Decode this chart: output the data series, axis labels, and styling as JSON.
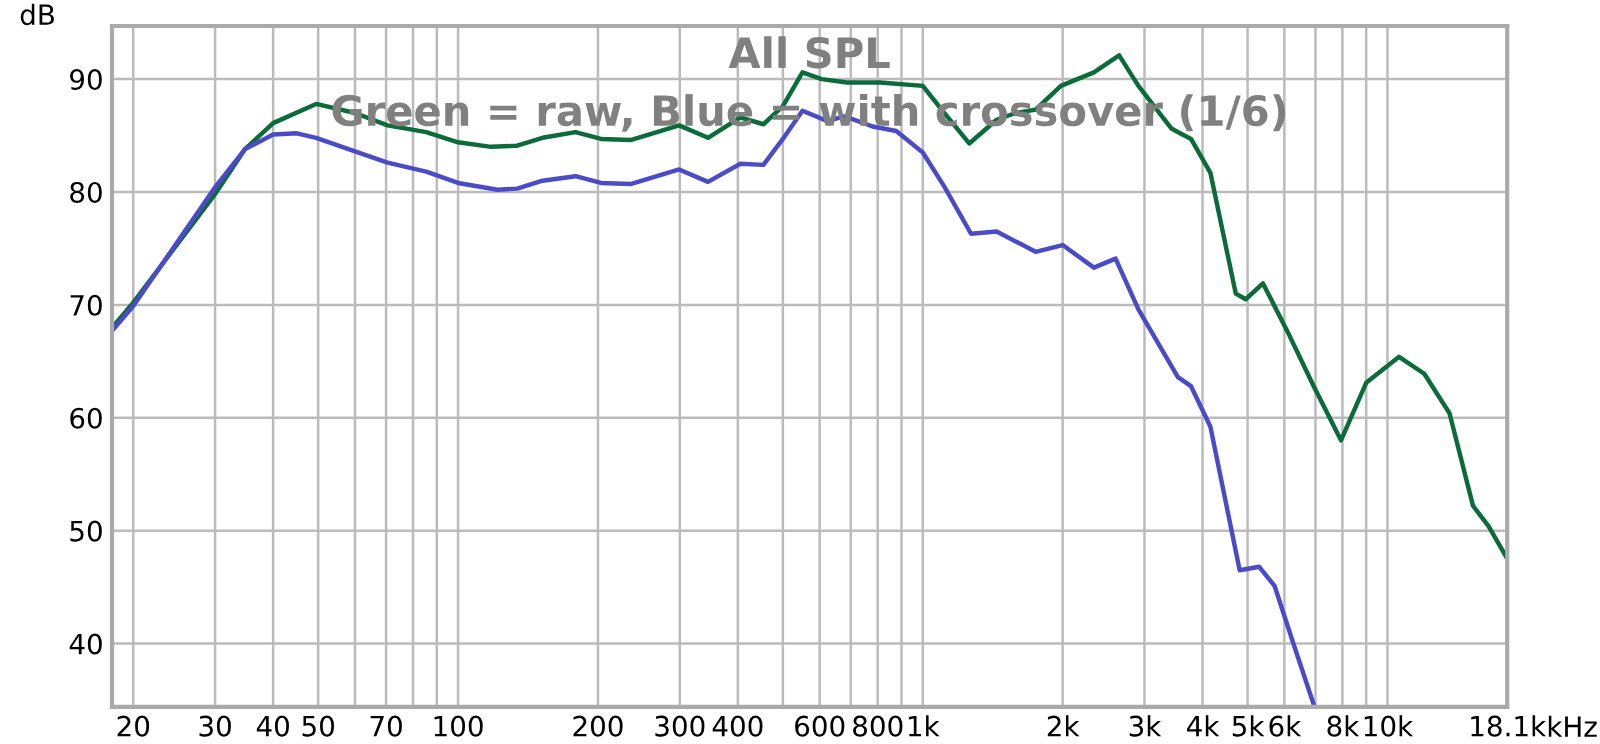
{
  "chart_data": {
    "type": "line",
    "title": "All SPL",
    "subtitle": "Green = raw, Blue = with crossover (1/6)",
    "ylabel": "dB",
    "log": "x",
    "grid": true,
    "marker": "none",
    "line_style": "solid",
    "xlim": [
      18,
      18100
    ],
    "ylim": [
      34.4,
      94.7
    ],
    "xticks": [
      20,
      30,
      40,
      50,
      {
        "value": 60,
        "label": null
      },
      70,
      {
        "value": 80,
        "label": null
      },
      {
        "value": 90,
        "label": null
      },
      100,
      200,
      300,
      400,
      {
        "value": 500,
        "label": null
      },
      600,
      {
        "value": 700,
        "label": null
      },
      800,
      {
        "value": 900,
        "label": null
      },
      {
        "value": 1000,
        "label": "1k"
      },
      {
        "value": 2000,
        "label": "2k"
      },
      {
        "value": 3000,
        "label": "3k"
      },
      {
        "value": 4000,
        "label": "4k"
      },
      {
        "value": 5000,
        "label": "5k"
      },
      {
        "value": 6000,
        "label": "6k"
      },
      {
        "value": 7000,
        "label": null
      },
      {
        "value": 8000,
        "label": "8k"
      },
      {
        "value": 9000,
        "label": null
      },
      {
        "value": 10000,
        "label": "10k"
      },
      {
        "value": 18100,
        "label": "18.1k"
      }
    ],
    "xlabel": "kHz",
    "yticks": [
      40,
      50,
      60,
      70,
      80,
      90
    ],
    "series": [
      {
        "color": "#0b6b3a",
        "x": [
          18.1,
          20,
          30.1,
          34.8,
          40,
          49.5,
          60,
          70.5,
          85.4,
          100,
          117.8,
          134,
          152,
          179,
          203,
          235,
          299,
          345,
          405,
          454,
          500,
          551,
          606,
          687,
          809,
          1000,
          1112,
          1259,
          1442,
          1585,
          1749,
          1983,
          2335,
          2646,
          2911,
          3433,
          3778,
          4159,
          4716,
          4955,
          5397,
          6115,
          6939,
          7943,
          8999,
          10593,
          12000,
          13600,
          15280,
          16500,
          18000
        ],
        "values": [
          68.1,
          70.2,
          79.9,
          83.8,
          86.1,
          87.8,
          87,
          85.9,
          85.3,
          84.4,
          84,
          84.1,
          84.8,
          85.3,
          84.7,
          84.6,
          85.9,
          84.8,
          86.6,
          86,
          87.6,
          90.6,
          90,
          89.7,
          89.7,
          89.4,
          87,
          84.3,
          86.4,
          87,
          87.3,
          89.4,
          90.6,
          92.1,
          89.4,
          85.6,
          84.7,
          81.7,
          71,
          70.5,
          71.9,
          67.5,
          62.8,
          58,
          63.1,
          65.4,
          63.9,
          60.4,
          52.2,
          50.4,
          47.7
        ]
      },
      {
        "color": "#4b4bc8",
        "x": [
          18.1,
          20,
          30.1,
          34.8,
          40,
          45,
          49.5,
          60,
          70.5,
          85.4,
          100,
          121.6,
          134,
          152,
          179,
          203,
          235,
          299,
          345,
          405,
          454,
          500,
          551,
          622,
          680,
          780,
          877,
          1000,
          1112,
          1270,
          1442,
          1749,
          2000,
          2335,
          2600,
          2911,
          3540,
          3778,
          4159,
          4808,
          5297,
          5717,
          6310,
          6939
        ],
        "values": [
          67.8,
          69.9,
          80.5,
          83.8,
          85.1,
          85.2,
          84.8,
          83.6,
          82.6,
          81.8,
          80.8,
          80.2,
          80.3,
          81,
          81.4,
          80.8,
          80.7,
          82,
          80.9,
          82.5,
          82.4,
          84.7,
          87.2,
          86.3,
          86.7,
          85.8,
          85.4,
          83.5,
          80.5,
          76.3,
          76.5,
          74.7,
          75.3,
          73.3,
          74.1,
          69.6,
          63.6,
          62.8,
          59.2,
          46.5,
          46.8,
          45.1,
          39.7,
          34.6
        ]
      }
    ]
  }
}
